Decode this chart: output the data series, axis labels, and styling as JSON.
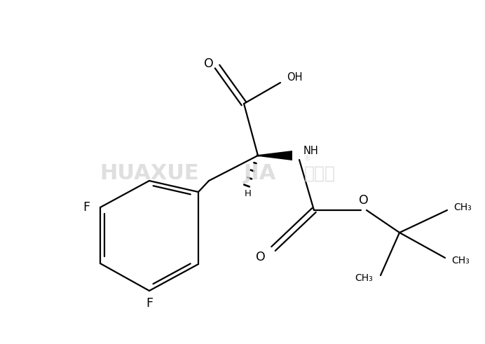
{
  "background_color": "#ffffff",
  "line_color": "#000000",
  "figsize": [
    6.92,
    4.91
  ],
  "dpi": 100,
  "lw": 1.6,
  "fs": 10.5,
  "watermark": {
    "text1": "HUAXUE",
    "text2": "JIA",
    "text3": "化学加",
    "color": "#d8d8d8"
  }
}
